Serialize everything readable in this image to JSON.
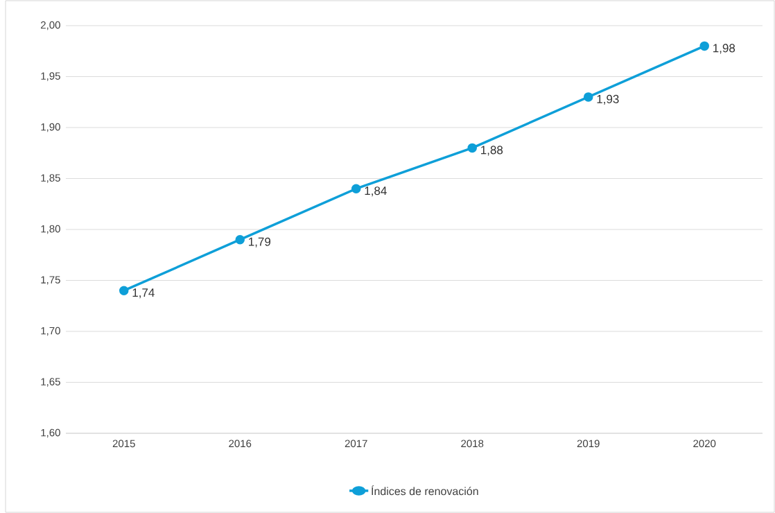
{
  "chart_data": {
    "type": "line",
    "categories": [
      "2015",
      "2016",
      "2017",
      "2018",
      "2019",
      "2020"
    ],
    "series": [
      {
        "name": "Índices de renovación",
        "color": "#0e9fd8",
        "values": [
          1.74,
          1.79,
          1.84,
          1.88,
          1.93,
          1.98
        ],
        "value_labels": [
          "1,74",
          "1,79",
          "1,84",
          "1,88",
          "1,93",
          "1,98"
        ]
      }
    ],
    "ylim": [
      1.6,
      2.0
    ],
    "yticks": [
      {
        "value": 1.6,
        "label": "1,60"
      },
      {
        "value": 1.65,
        "label": "1,65"
      },
      {
        "value": 1.7,
        "label": "1,70"
      },
      {
        "value": 1.75,
        "label": "1,75"
      },
      {
        "value": 1.8,
        "label": "1,80"
      },
      {
        "value": 1.85,
        "label": "1,85"
      },
      {
        "value": 1.9,
        "label": "1,90"
      },
      {
        "value": 1.95,
        "label": "1,95"
      },
      {
        "value": 2.0,
        "label": "2,00"
      }
    ],
    "grid": "y",
    "legend": "bottom",
    "marker": "circle",
    "line_style": "solid"
  }
}
